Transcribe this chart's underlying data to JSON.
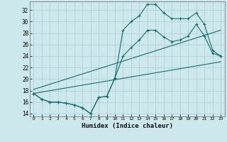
{
  "xlabel": "Humidex (Indice chaleur)",
  "ylabel": "",
  "bg_color": "#cce8ec",
  "grid_color": "#aacdd4",
  "line_color": "#1a6b6b",
  "xlim": [
    -0.5,
    23.5
  ],
  "ylim": [
    13.5,
    33.5
  ],
  "yticks": [
    14,
    16,
    18,
    20,
    22,
    24,
    26,
    28,
    30,
    32
  ],
  "xticks": [
    0,
    1,
    2,
    3,
    4,
    5,
    6,
    7,
    8,
    9,
    10,
    11,
    12,
    13,
    14,
    15,
    16,
    17,
    18,
    19,
    20,
    21,
    22,
    23
  ],
  "line1_x": [
    0,
    1,
    2,
    3,
    4,
    5,
    6,
    7,
    8,
    9,
    10,
    11,
    12,
    13,
    14,
    15,
    16,
    17,
    18,
    19,
    20,
    21,
    22,
    23
  ],
  "line1_y": [
    17.5,
    16.5,
    16.0,
    16.0,
    15.8,
    15.5,
    15.0,
    14.0,
    16.8,
    17.0,
    20.2,
    28.5,
    30.0,
    31.0,
    33.0,
    33.0,
    31.5,
    30.5,
    30.5,
    30.5,
    31.5,
    29.5,
    25.0,
    24.0
  ],
  "line2_x": [
    0,
    1,
    2,
    3,
    4,
    5,
    6,
    7,
    8,
    9,
    10,
    11,
    12,
    13,
    14,
    15,
    16,
    17,
    18,
    19,
    20,
    21,
    22,
    23
  ],
  "line2_y": [
    17.5,
    16.5,
    16.0,
    16.0,
    15.8,
    15.5,
    15.0,
    14.0,
    16.8,
    17.0,
    20.2,
    24.0,
    25.5,
    26.8,
    28.5,
    28.5,
    27.3,
    26.5,
    26.8,
    27.5,
    29.5,
    27.5,
    24.5,
    24.0
  ],
  "line3_x": [
    0,
    23
  ],
  "line3_y": [
    17.5,
    23.0
  ],
  "line4_x": [
    0,
    23
  ],
  "line4_y": [
    18.2,
    28.5
  ]
}
